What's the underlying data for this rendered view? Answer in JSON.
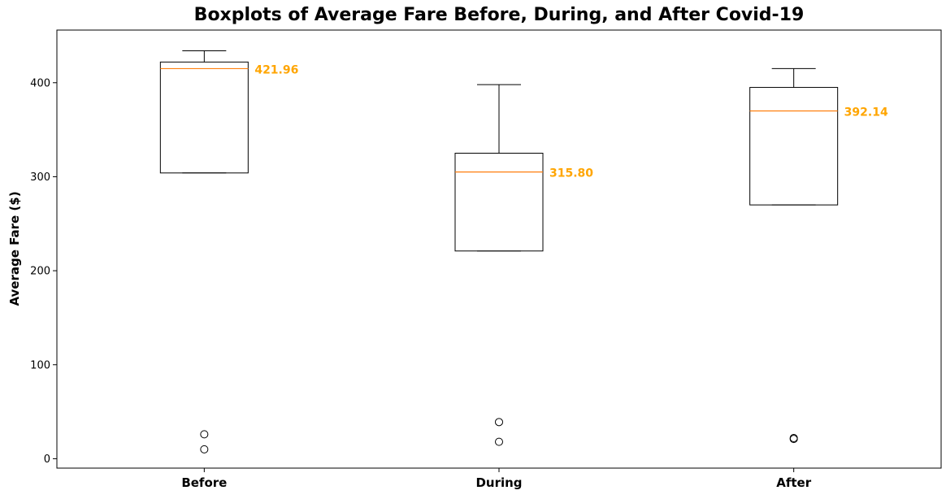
{
  "chart_data": {
    "type": "boxplot",
    "title": "Boxplots of Average Fare Before, During, and After Covid-19",
    "xlabel": "",
    "ylabel": "Average Fare ($)",
    "ylim": [
      -10,
      456
    ],
    "yticks": [
      0,
      100,
      200,
      300,
      400
    ],
    "categories": [
      "Before",
      "During",
      "After"
    ],
    "boxes": [
      {
        "category": "Before",
        "whisker_low": 304,
        "q1": 304,
        "median": 415,
        "q3": 422,
        "whisker_high": 434,
        "outliers": [
          26,
          10
        ],
        "annotation": "421.96"
      },
      {
        "category": "During",
        "whisker_low": 221,
        "q1": 221,
        "median": 305,
        "q3": 325,
        "whisker_high": 398,
        "outliers": [
          39,
          18
        ],
        "annotation": "315.80"
      },
      {
        "category": "After",
        "whisker_low": 270,
        "q1": 270,
        "median": 370,
        "q3": 395,
        "whisker_high": 415,
        "outliers": [
          22,
          21
        ],
        "annotation": "392.14"
      }
    ],
    "grid": false,
    "colors": {
      "box": "#000000",
      "median": "#FF7F0E",
      "annotation": "#FFA500"
    }
  }
}
